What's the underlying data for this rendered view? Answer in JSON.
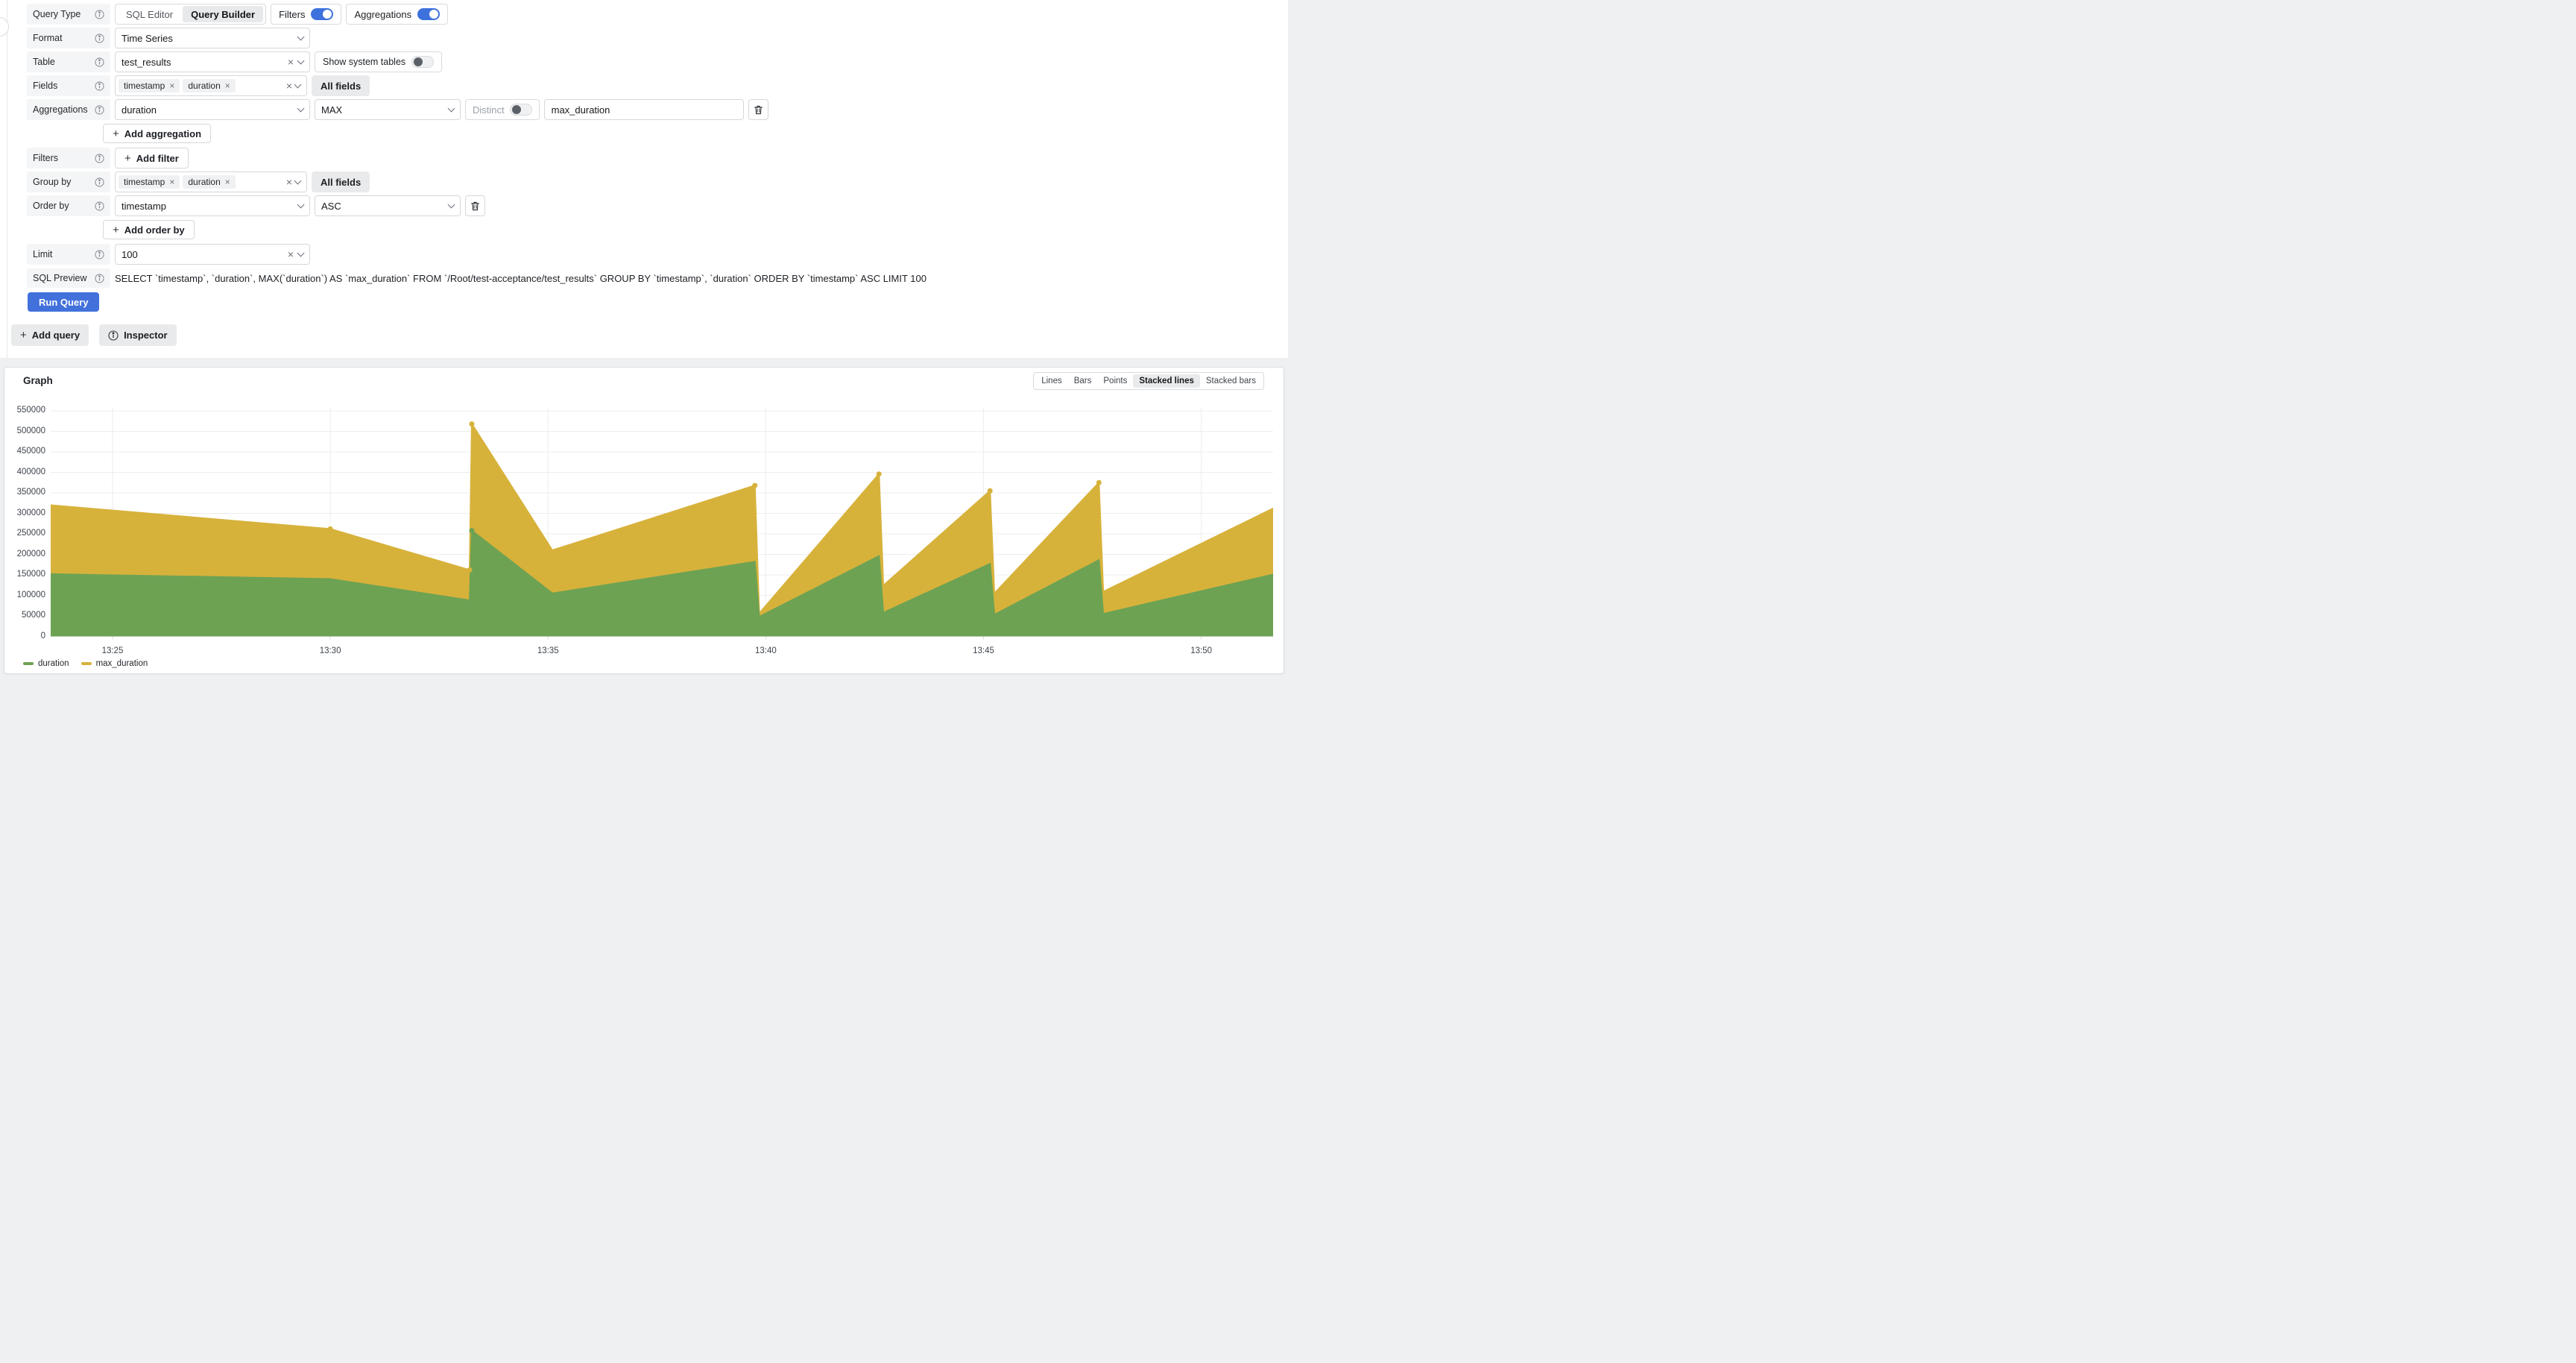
{
  "editor": {
    "query_type": {
      "label": "Query Type",
      "options": [
        "SQL Editor",
        "Query Builder"
      ],
      "selected": "Query Builder",
      "filters": {
        "label": "Filters",
        "on": true
      },
      "aggregations": {
        "label": "Aggregations",
        "on": true
      }
    },
    "format": {
      "label": "Format",
      "value": "Time Series"
    },
    "table": {
      "label": "Table",
      "value": "test_results",
      "show_system_tables_label": "Show system tables",
      "show_system_tables_on": false
    },
    "fields": {
      "label": "Fields",
      "chips": [
        "timestamp",
        "duration"
      ],
      "all_fields_label": "All fields"
    },
    "aggregations": {
      "label": "Aggregations",
      "column": "duration",
      "function": "MAX",
      "distinct_label": "Distinct",
      "distinct_on": false,
      "alias": "max_duration",
      "add_label": "Add aggregation"
    },
    "filters": {
      "label": "Filters",
      "add_label": "Add filter"
    },
    "group_by": {
      "label": "Group by",
      "chips": [
        "timestamp",
        "duration"
      ],
      "all_fields_label": "All fields"
    },
    "order_by": {
      "label": "Order by",
      "column": "timestamp",
      "direction": "ASC",
      "add_label": "Add order by"
    },
    "limit": {
      "label": "Limit",
      "value": "100"
    },
    "sql_preview": {
      "label": "SQL Preview",
      "sql": "SELECT `timestamp`, `duration`, MAX(`duration`) AS `max_duration` FROM `/Root/test-acceptance/test_results` GROUP BY `timestamp`, `duration` ORDER BY `timestamp` ASC LIMIT 100"
    },
    "run_query_label": "Run Query",
    "add_query_label": "Add query",
    "inspector_label": "Inspector"
  },
  "panel": {
    "title": "Graph",
    "view_modes": [
      "Lines",
      "Bars",
      "Points",
      "Stacked lines",
      "Stacked bars"
    ],
    "selected_view_mode": "Stacked lines"
  },
  "chart_data": {
    "type": "area",
    "stacked": true,
    "title": "Graph",
    "legend_position": "bottom-left",
    "grid": true,
    "x_is_time": true,
    "xlim_minutes": [
      23.58,
      51.65
    ],
    "ylim": [
      0,
      550000
    ],
    "x_tick_labels": [
      "13:25",
      "13:30",
      "13:35",
      "13:40",
      "13:45",
      "13:50"
    ],
    "x_tick_minutes": [
      25,
      30,
      35,
      40,
      45,
      50
    ],
    "y_ticks": [
      0,
      50000,
      100000,
      150000,
      200000,
      250000,
      300000,
      350000,
      400000,
      450000,
      500000,
      550000
    ],
    "x_minutes": [
      23.58,
      30.0,
      33.2,
      33.25,
      35.1,
      39.75,
      39.85,
      42.6,
      42.7,
      45.15,
      45.25,
      47.65,
      47.75,
      51.65
    ],
    "series": [
      {
        "name": "duration",
        "color": "#6da253",
        "values": [
          152000,
          140000,
          88000,
          258000,
          105000,
          182000,
          48000,
          196000,
          58000,
          177000,
          53000,
          186000,
          55000,
          151000
        ]
      },
      {
        "name": "max_duration",
        "color": "#d7b23b",
        "values": [
          168000,
          122000,
          74000,
          260000,
          105000,
          186000,
          8000,
          200000,
          66000,
          178000,
          52000,
          189000,
          54000,
          161000
        ]
      }
    ],
    "marker_indices_total": [
      1,
      2,
      3,
      5,
      7,
      9,
      11
    ],
    "marker_indices_duration": [
      3
    ]
  }
}
